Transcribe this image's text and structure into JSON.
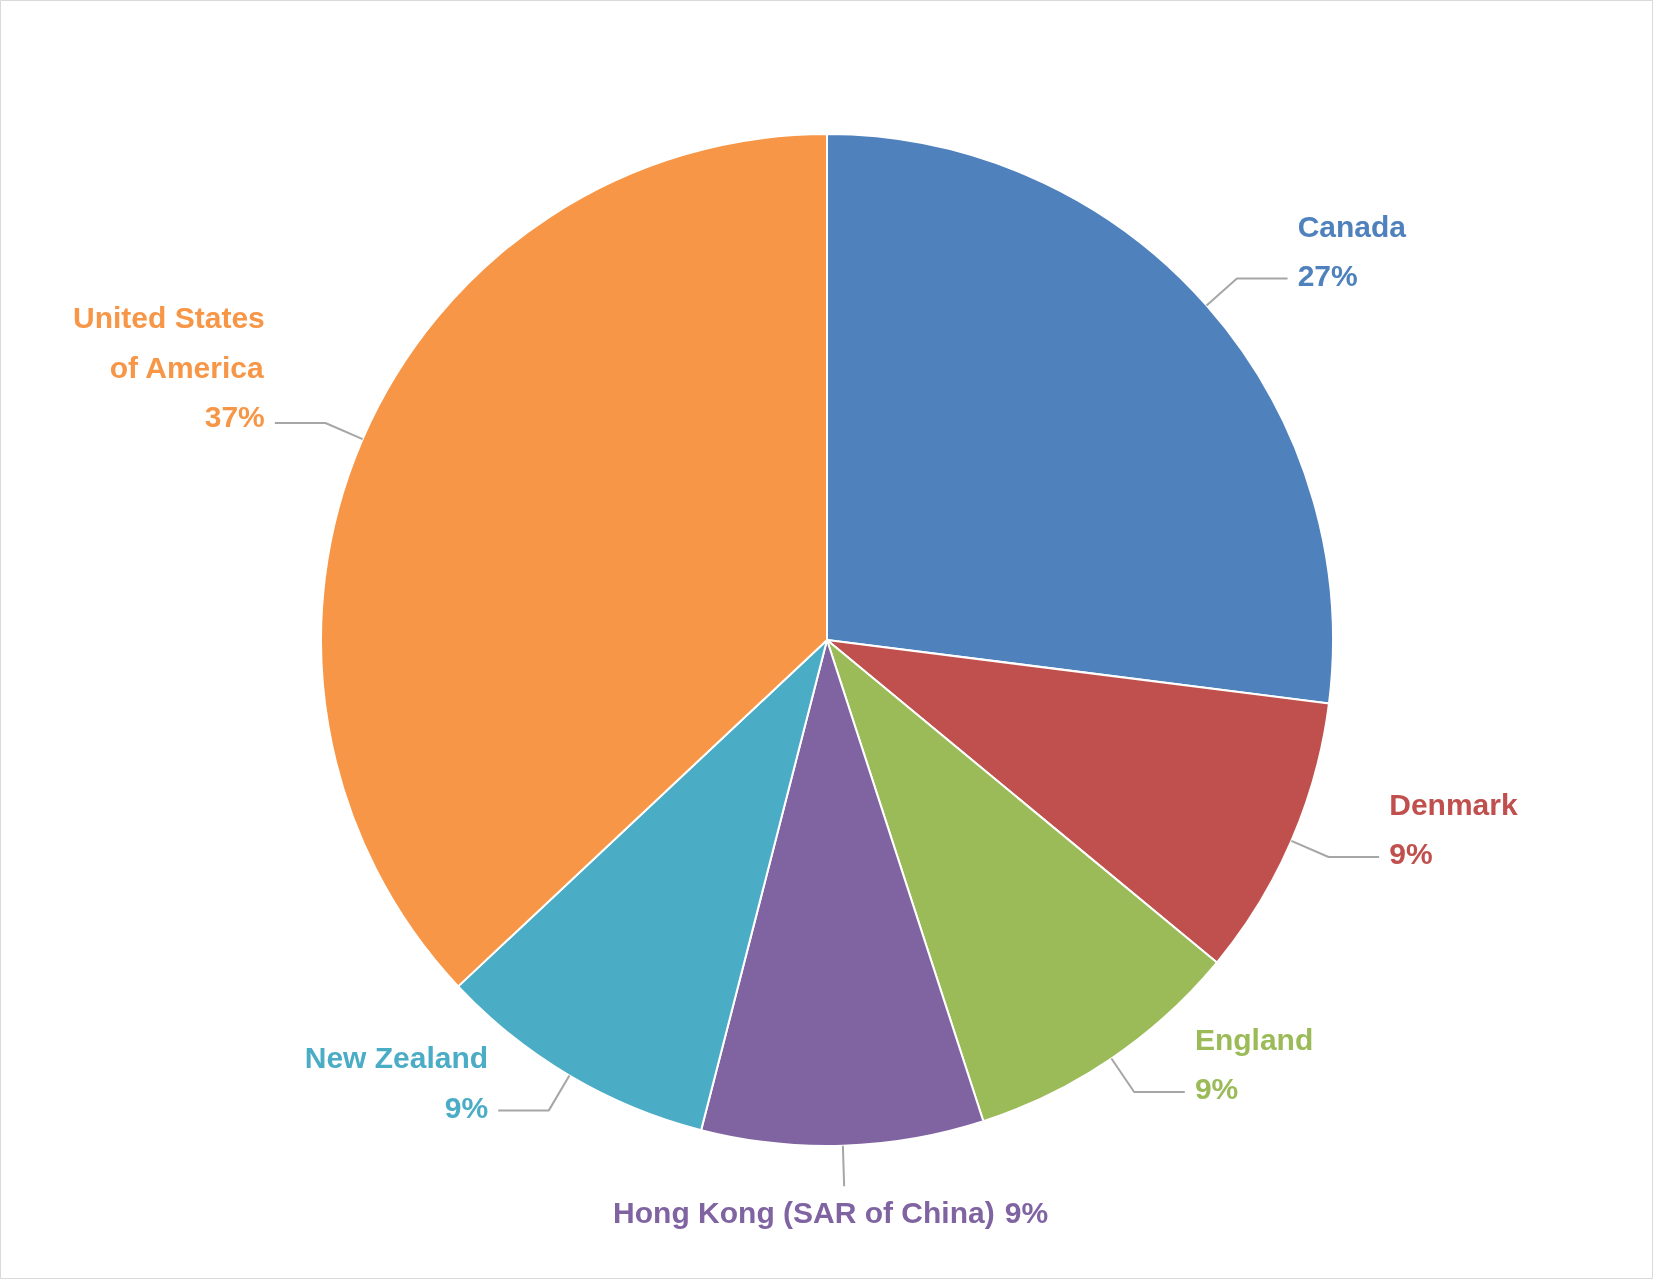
{
  "chart_data": {
    "type": "pie",
    "categories": [
      "Canada",
      "Denmark",
      "England",
      "Hong Kong (SAR of China)",
      "New Zealand",
      "United States of America"
    ],
    "values": [
      27,
      9,
      9,
      9,
      9,
      37
    ],
    "value_labels": [
      "27%",
      "9%",
      "9%",
      "9%",
      "9%",
      "37%"
    ],
    "colors": [
      "#4f81bd",
      "#c0504d",
      "#9bbb59",
      "#8064a2",
      "#4bacc6",
      "#f79646"
    ]
  }
}
